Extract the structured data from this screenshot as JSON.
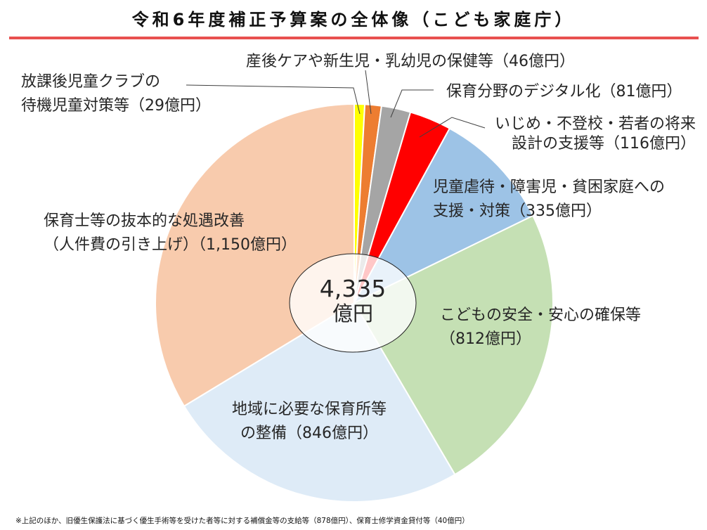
{
  "title": "令和6年度補正予算案の全体像（こども家庭庁）",
  "center": {
    "total": "4,335",
    "unit": "億円"
  },
  "labels": {
    "afterschool": [
      "放課後児童クラブの",
      "待機児童対策等（29億円）"
    ],
    "postnatal": [
      "産後ケアや新生児・乳幼児の保健等（46億円）"
    ],
    "digital": [
      "保育分野のデジタル化（81億円）"
    ],
    "bullying": [
      "いじめ・不登校・若者の将来",
      "設計の支援等（116億円）"
    ],
    "abuse": [
      "児童虐待・障害児・貧困家庭への",
      "支援・対策（335億円）"
    ],
    "childcare": [
      "保育士等の抜本的な処遇改善",
      "（人件費の引き上げ）（1,150億円）"
    ],
    "safety": [
      "こどもの安全・安心の確保等",
      "（812億円）"
    ],
    "nursery": [
      "地域に必要な保育所等",
      "の整備（846億円）"
    ]
  },
  "footnote": "※上記のほか、旧優生保護法に基づく優生手術等を受けた者等に対する補償金等の支給等（878億円）、保育士修学資金貸付等（40億円）",
  "chart_data": {
    "type": "pie",
    "title": "令和6年度補正予算案の全体像（こども家庭庁）",
    "unit": "億円",
    "total_label": "4,335億円",
    "start_angle_deg": 0,
    "direction": "clockwise",
    "categories": [
      "放課後児童クラブの待機児童対策等",
      "産後ケアや新生児・乳幼児の保健等",
      "保育分野のデジタル化",
      "いじめ・不登校・若者の将来設計の支援等",
      "児童虐待・障害児・貧困家庭への支援・対策",
      "こどもの安全・安心の確保等",
      "地域に必要な保育所等の整備",
      "保育士等の抜本的な処遇改善（人件費の引き上げ）"
    ],
    "values": [
      29,
      46,
      81,
      116,
      335,
      812,
      846,
      1150
    ],
    "colors": [
      "#FFFF00",
      "#ED7D31",
      "#A5A5A5",
      "#FF0000",
      "#9DC3E6",
      "#C5E0B4",
      "#DEEBF7",
      "#F8CBAD"
    ],
    "excluded_notes": [
      {
        "label": "旧優生保護法に基づく優生手術等を受けた者等に対する補償金等の支給等",
        "value": 878
      },
      {
        "label": "保育士修学資金貸付等",
        "value": 40
      }
    ]
  }
}
